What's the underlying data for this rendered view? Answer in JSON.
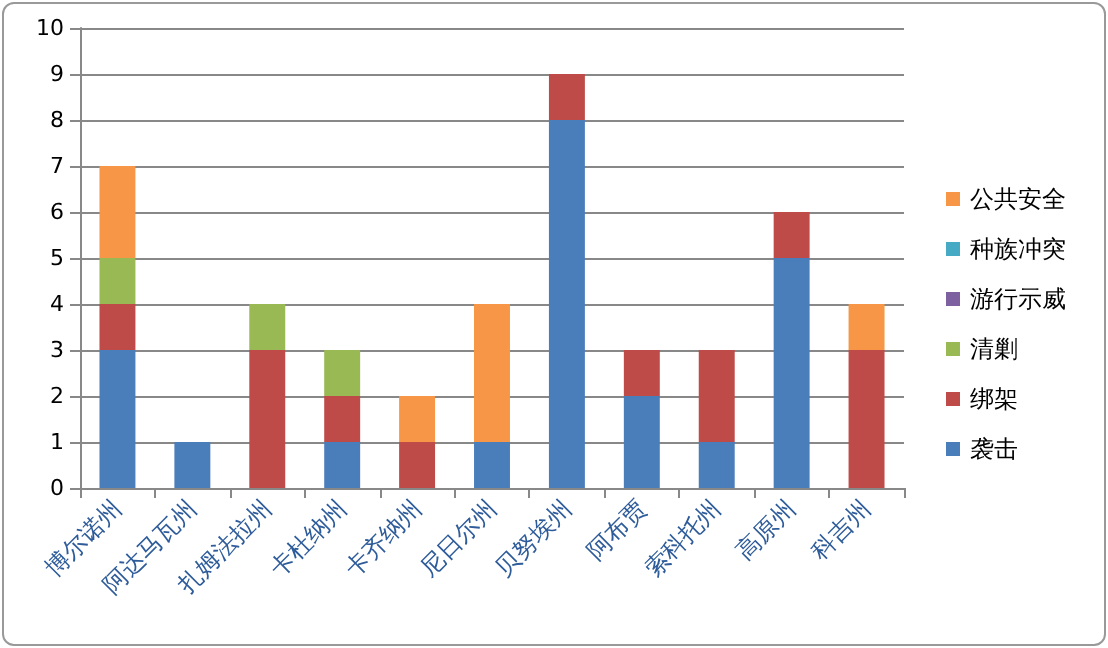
{
  "chart_data": {
    "type": "bar",
    "stacked": true,
    "categories": [
      "博尔诺州",
      "阿达马瓦州",
      "扎姆法拉州",
      "卡杜纳州",
      "卡齐纳州",
      "尼日尔州",
      "贝努埃州",
      "阿布贾",
      "索科托州",
      "高原州",
      "科吉州"
    ],
    "series": [
      {
        "name": "袭击",
        "color": "#4a7ebb",
        "values": [
          3,
          1,
          0,
          1,
          0,
          1,
          8,
          2,
          1,
          5,
          0
        ]
      },
      {
        "name": "绑架",
        "color": "#be4b48",
        "values": [
          1,
          0,
          3,
          1,
          1,
          0,
          1,
          1,
          2,
          1,
          3
        ]
      },
      {
        "name": "清剿",
        "color": "#98b954",
        "values": [
          1,
          0,
          1,
          1,
          0,
          0,
          0,
          0,
          0,
          0,
          0
        ]
      },
      {
        "name": "游行示威",
        "color": "#7d60a0",
        "values": [
          0,
          0,
          0,
          0,
          0,
          0,
          0,
          0,
          0,
          0,
          0
        ]
      },
      {
        "name": "种族冲突",
        "color": "#46aac5",
        "values": [
          0,
          0,
          0,
          0,
          0,
          0,
          0,
          0,
          0,
          0,
          0
        ]
      },
      {
        "name": "公共安全",
        "color": "#f79646",
        "values": [
          2,
          0,
          0,
          0,
          1,
          3,
          0,
          0,
          0,
          0,
          1
        ]
      }
    ],
    "ylim": [
      0,
      10
    ],
    "yticks": [
      0,
      1,
      2,
      3,
      4,
      5,
      6,
      7,
      8,
      9,
      10
    ],
    "grid": "y",
    "legend": "right"
  }
}
